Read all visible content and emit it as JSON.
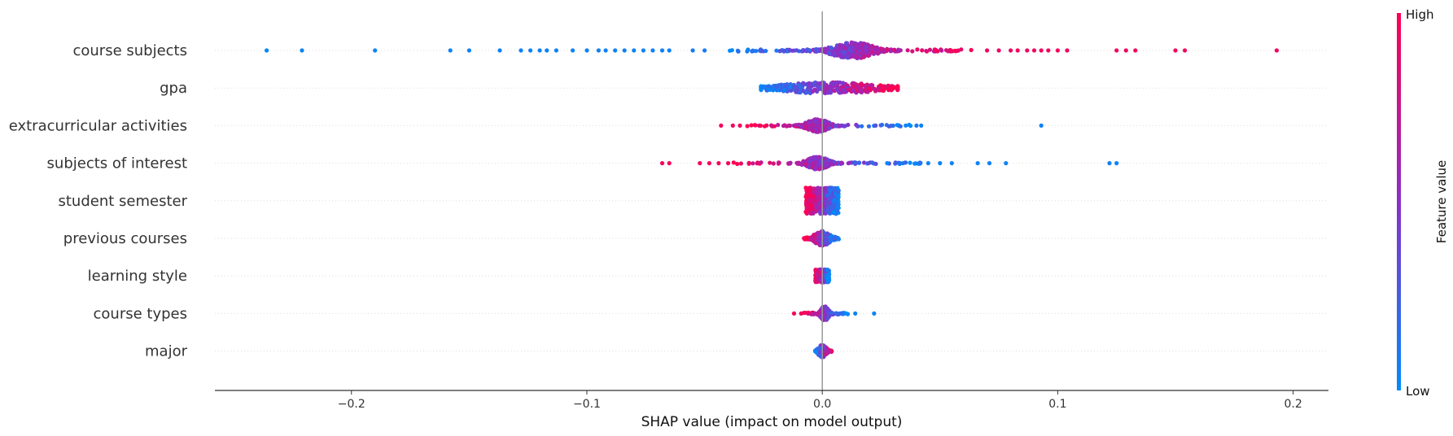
{
  "chart_data": {
    "type": "scatter",
    "subtype": "shap-beeswarm",
    "xlabel": "SHAP value (impact on model output)",
    "xlim": [
      -0.258,
      0.215
    ],
    "xticks": [
      -0.2,
      -0.1,
      0.0,
      0.1,
      0.2
    ],
    "xtick_labels": [
      "−0.2",
      "−0.1",
      "0.0",
      "0.1",
      "0.2"
    ],
    "colorbar": {
      "label": "Feature value",
      "high": "High",
      "low": "Low",
      "low_color": "#008bfb",
      "mid_color": "#8b2fc9",
      "high_color": "#ff0051"
    },
    "zero_line_color": "#999999",
    "features": [
      {
        "name": "course subjects",
        "points": [
          [
            -0.236,
            0.02
          ],
          [
            -0.221,
            0.03
          ],
          [
            -0.19,
            0.05
          ],
          [
            -0.158,
            0.05
          ],
          [
            -0.15,
            0.05
          ],
          [
            -0.137,
            0.05
          ],
          [
            -0.128,
            0.05
          ],
          [
            -0.124,
            0.05
          ],
          [
            -0.12,
            0.05
          ],
          [
            -0.117,
            0.05
          ],
          [
            -0.113,
            0.05
          ],
          [
            -0.106,
            0.05
          ],
          [
            -0.1,
            0.05
          ],
          [
            -0.095,
            0.05
          ],
          [
            -0.092,
            0.05
          ],
          [
            -0.088,
            0.05
          ],
          [
            -0.084,
            0.05
          ],
          [
            -0.08,
            0.05
          ],
          [
            -0.076,
            0.05
          ],
          [
            -0.072,
            0.05
          ],
          [
            -0.068,
            0.05
          ],
          [
            -0.065,
            0.05
          ],
          [
            -0.055,
            0.08
          ],
          [
            -0.05,
            0.1
          ],
          [
            0.07,
            0.92
          ],
          [
            0.075,
            0.92
          ],
          [
            0.08,
            0.9
          ],
          [
            0.083,
            0.95
          ],
          [
            0.087,
            0.92
          ],
          [
            0.09,
            0.95
          ],
          [
            0.093,
            0.95
          ],
          [
            0.096,
            0.95
          ],
          [
            0.1,
            0.95
          ],
          [
            0.104,
            0.95
          ],
          [
            0.125,
            0.95
          ],
          [
            0.129,
            0.95
          ],
          [
            0.133,
            0.95
          ],
          [
            0.15,
            0.95
          ],
          [
            0.154,
            0.95
          ],
          [
            0.193,
            0.95
          ]
        ],
        "cloud": {
          "min": -0.04,
          "max": 0.065,
          "center": 0.013,
          "spread": 0.008,
          "count": 380,
          "hiFraction": 0.75,
          "maxWidth": 20
        }
      },
      {
        "name": "gpa",
        "points": [],
        "cloud": {
          "min": -0.026,
          "max": 0.032,
          "center": 0.003,
          "spread": 0.02,
          "count": 360,
          "gradient": "left-low",
          "maxWidth": 14
        }
      },
      {
        "name": "extracurricular activities",
        "points": [
          [
            -0.043,
            0.95
          ],
          [
            -0.038,
            0.95
          ],
          [
            -0.035,
            0.95
          ],
          [
            0.04,
            0.08
          ],
          [
            0.042,
            0.05
          ],
          [
            0.093,
            0.05
          ]
        ],
        "cloud": {
          "min": -0.032,
          "max": 0.038,
          "center": -0.002,
          "spread": 0.004,
          "count": 280,
          "gradient": "left-high",
          "maxWidth": 16
        }
      },
      {
        "name": "subjects of interest",
        "points": [
          [
            -0.068,
            0.95
          ],
          [
            -0.065,
            0.95
          ],
          [
            -0.052,
            0.95
          ],
          [
            -0.048,
            0.95
          ],
          [
            -0.044,
            0.95
          ],
          [
            -0.04,
            0.95
          ],
          [
            0.045,
            0.05
          ],
          [
            0.05,
            0.05
          ],
          [
            0.055,
            0.05
          ],
          [
            0.066,
            0.05
          ],
          [
            0.071,
            0.05
          ],
          [
            0.078,
            0.05
          ],
          [
            0.122,
            0.05
          ],
          [
            0.125,
            0.05
          ]
        ],
        "cloud": {
          "min": -0.038,
          "max": 0.042,
          "center": -0.002,
          "spread": 0.004,
          "count": 300,
          "gradient": "left-high",
          "maxWidth": 16
        }
      },
      {
        "name": "student semester",
        "points": [],
        "cloud": {
          "min": -0.007,
          "max": 0.007,
          "center": 0.0,
          "spread": 0.0,
          "count": 520,
          "gradient": "left-high",
          "maxWidth": 32,
          "block": true
        }
      },
      {
        "name": "previous courses",
        "points": [],
        "cloud": {
          "min": -0.008,
          "max": 0.007,
          "center": 0.0,
          "spread": 0.003,
          "count": 220,
          "gradient": "left-high",
          "maxWidth": 18
        }
      },
      {
        "name": "learning style",
        "points": [],
        "cloud": {
          "min": -0.003,
          "max": 0.003,
          "center": 0.0,
          "spread": 0.0,
          "count": 200,
          "gradient": "left-high",
          "maxWidth": 16,
          "block": true
        }
      },
      {
        "name": "course types",
        "points": [
          [
            -0.012,
            0.95
          ],
          [
            -0.009,
            0.95
          ],
          [
            0.014,
            0.05
          ],
          [
            0.022,
            0.05
          ]
        ],
        "cloud": {
          "min": -0.008,
          "max": 0.011,
          "center": 0.001,
          "spread": 0.001,
          "count": 200,
          "gradient": "left-high",
          "maxWidth": 18
        }
      },
      {
        "name": "major",
        "points": [],
        "cloud": {
          "min": -0.003,
          "max": 0.004,
          "center": 0.0,
          "spread": 0.0,
          "count": 140,
          "gradient": "right-high",
          "maxWidth": 16
        }
      }
    ]
  }
}
